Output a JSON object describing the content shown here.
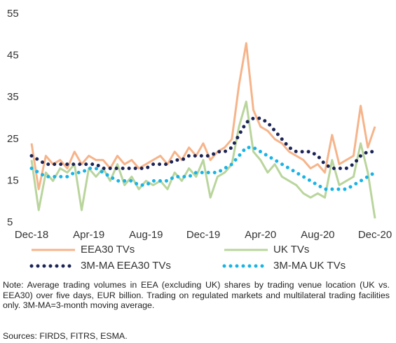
{
  "chart_data": {
    "type": "line",
    "categories": [
      "Dec-18",
      null,
      null,
      null,
      null,
      null,
      null,
      null,
      "Apr-19",
      null,
      null,
      null,
      null,
      null,
      null,
      null,
      "Aug-19",
      null,
      null,
      null,
      null,
      null,
      null,
      null,
      "Dec-19",
      null,
      null,
      null,
      null,
      null,
      null,
      null,
      "Apr-20",
      null,
      null,
      null,
      null,
      null,
      null,
      null,
      "Aug-20",
      null,
      null,
      null,
      null,
      null,
      null,
      null,
      "Dec-20"
    ],
    "series": [
      {
        "name": "EEA30 TVs",
        "color": "#f6b48a",
        "style": "solid",
        "values": [
          24,
          13,
          21,
          19,
          20,
          18,
          22,
          19,
          21,
          20,
          20,
          18,
          21,
          19,
          20,
          18,
          19,
          20,
          21,
          19,
          22,
          20,
          23,
          21,
          24,
          20,
          22,
          23,
          25,
          38,
          48,
          32,
          28,
          27,
          25,
          24,
          22,
          21,
          20,
          18,
          19,
          17,
          26,
          19,
          20,
          21,
          33,
          23,
          28
        ]
      },
      {
        "name": "UK TVs",
        "color": "#b9d59c",
        "style": "solid",
        "values": [
          20,
          8,
          17,
          15,
          18,
          17,
          19,
          8,
          18,
          16,
          18,
          15,
          19,
          14,
          16,
          13,
          15,
          14,
          15,
          13,
          17,
          15,
          18,
          16,
          20,
          11,
          16,
          17,
          19,
          28,
          34,
          22,
          20,
          17,
          19,
          16,
          15,
          14,
          12,
          11,
          12,
          11,
          20,
          14,
          15,
          16,
          24,
          17,
          6
        ]
      },
      {
        "name": "3M-MA EEA30 TVs",
        "color": "#1b2455",
        "style": "dotted",
        "values": [
          21,
          20,
          19,
          19,
          19,
          19,
          19,
          19,
          19,
          19,
          18,
          18,
          18,
          18,
          18,
          18,
          18,
          19,
          19,
          19,
          20,
          20,
          21,
          21,
          21,
          21,
          22,
          22,
          23,
          26,
          29,
          30,
          30,
          29,
          27,
          25,
          23,
          22,
          22,
          22,
          21,
          19,
          18,
          18,
          18,
          19,
          21,
          22,
          22
        ]
      },
      {
        "name": "3M-MA UK TVs",
        "color": "#19b3e6",
        "style": "dotted",
        "values": [
          18,
          17,
          16,
          16,
          16,
          16,
          17,
          17,
          18,
          18,
          17,
          16,
          15,
          15,
          15,
          14,
          14,
          15,
          15,
          15,
          16,
          16,
          16,
          17,
          17,
          17,
          17,
          18,
          19,
          21,
          23,
          23,
          22,
          21,
          20,
          19,
          18,
          17,
          16,
          15,
          14,
          13,
          13,
          13,
          13,
          14,
          15,
          16,
          17
        ]
      }
    ],
    "ylim": [
      5,
      55
    ],
    "yticks": [
      5,
      15,
      25,
      35,
      45,
      55
    ],
    "grid": false,
    "note": "Note: Average trading volumes in EEA (excluding UK) shares by trading venue location (UK vs. EEA30) over five days, EUR billion. Trading on regulated markets and multilateral trading facilities only. 3M-MA=3-month moving average.",
    "sources": "Sources: FIRDS, FITRS, ESMA."
  }
}
